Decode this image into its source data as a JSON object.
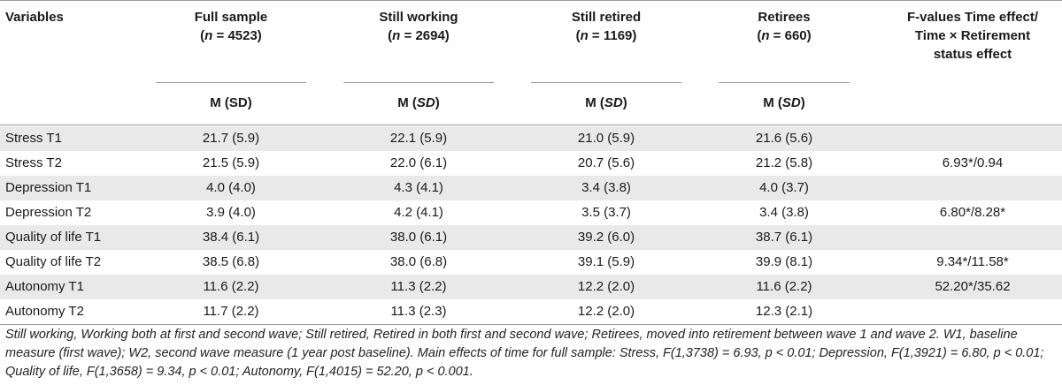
{
  "header": {
    "variables": "Variables",
    "columns": [
      {
        "title": "Full sample",
        "n_prefix": "(",
        "n_sym": "n",
        "n_value": " = 4523)"
      },
      {
        "title": "Still working",
        "n_prefix": "(",
        "n_sym": "n",
        "n_value": " = 2694)"
      },
      {
        "title": "Still retired",
        "n_prefix": "(",
        "n_sym": "n",
        "n_value": " = 1169)"
      },
      {
        "title": "Retirees",
        "n_prefix": "(",
        "n_sym": "n",
        "n_value": " = 660)"
      }
    ],
    "f_values_lines": [
      "F-values Time effect/",
      "Time × Retirement",
      "status effect"
    ],
    "m_label": "M (",
    "sd_label": "SD",
    "close": ")",
    "m_label_first": "M (SD)"
  },
  "rows": [
    {
      "label": "Stress T1",
      "values": [
        "21.7 (5.9)",
        "22.1 (5.9)",
        "21.0 (5.9)",
        "21.6 (5.6)"
      ],
      "f": ""
    },
    {
      "label": "Stress T2",
      "values": [
        "21.5 (5.9)",
        "22.0 (6.1)",
        "20.7 (5.6)",
        "21.2 (5.8)"
      ],
      "f": "6.93*/0.94"
    },
    {
      "label": "Depression T1",
      "values": [
        "4.0 (4.0)",
        "4.3 (4.1)",
        "3.4 (3.8)",
        "4.0 (3.7)"
      ],
      "f": ""
    },
    {
      "label": "Depression T2",
      "values": [
        "3.9 (4.0)",
        "4.2 (4.1)",
        "3.5 (3.7)",
        "3.4 (3.8)"
      ],
      "f": "6.80*/8.28*"
    },
    {
      "label": "Quality of life T1",
      "values": [
        "38.4 (6.1)",
        "38.0 (6.1)",
        "39.2 (6.0)",
        "38.7 (6.1)"
      ],
      "f": ""
    },
    {
      "label": "Quality of life T2",
      "values": [
        "38.5 (6.8)",
        "38.0 (6.8)",
        "39.1 (5.9)",
        "39.9 (8.1)"
      ],
      "f": "9.34*/11.58*"
    },
    {
      "label": "Autonomy T1",
      "values": [
        "11.6 (2.2)",
        "11.3 (2.2)",
        "12.2 (2.0)",
        "11.6 (2.2)"
      ],
      "f": "52.20*/35.62"
    },
    {
      "label": "Autonomy T2",
      "values": [
        "11.7 (2.2)",
        "11.3 (2.3)",
        "12.2 (2.0)",
        "12.3 (2.1)"
      ],
      "f": ""
    }
  ],
  "footnote": "Still working, Working both at first and second wave; Still retired, Retired in both first and second wave; Retirees, moved into retirement between wave 1 and wave 2. W1, baseline measure (first wave); W2, second wave measure (1 year post baseline). Main effects of time for full sample: Stress, F(1,3738) = 6.93, p < 0.01; Depression, F(1,3921) = 6.80, p < 0.01; Quality of life, F(1,3658) = 9.34, p < 0.01; Autonomy, F(1,4015) = 52.20, p < 0.001."
}
